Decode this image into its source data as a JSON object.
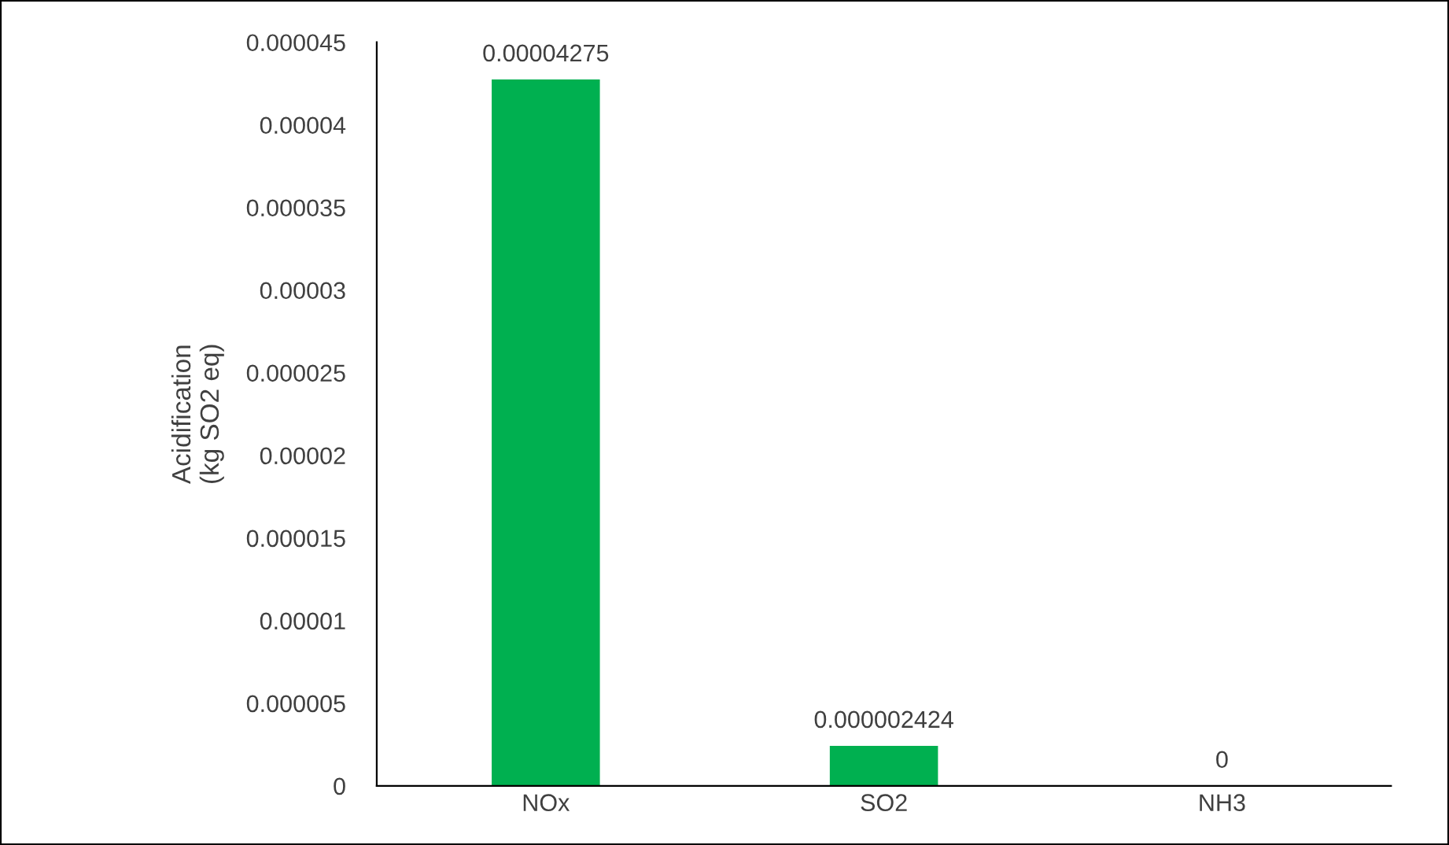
{
  "chart_data": {
    "type": "bar",
    "ylabel": "Acidification\n(kg SO2 eq)",
    "categories": [
      "NOx",
      "SO2",
      "NH3"
    ],
    "values": [
      4.275e-05,
      2.424e-06,
      0
    ],
    "value_labels": [
      "0.00004275",
      "0.000002424",
      "0"
    ],
    "color": "#00b050",
    "ylim": [
      0,
      4.5e-05
    ],
    "yticks": [
      0,
      {
        "value": 5e-06,
        "label": "0.000005"
      },
      {
        "value": 1e-05,
        "label": "0.00001"
      },
      {
        "value": 1.5e-05,
        "label": "0.000015"
      },
      {
        "value": 2e-05,
        "label": "0.00002"
      },
      {
        "value": 2.5e-05,
        "label": "0.000025"
      },
      {
        "value": 3e-05,
        "label": "0.00003"
      },
      {
        "value": 3.5e-05,
        "label": "0.000035"
      },
      {
        "value": 4e-05,
        "label": "0.00004"
      },
      {
        "value": 4.5e-05,
        "label": "0.000045"
      }
    ],
    "grid": false,
    "legend": false
  }
}
